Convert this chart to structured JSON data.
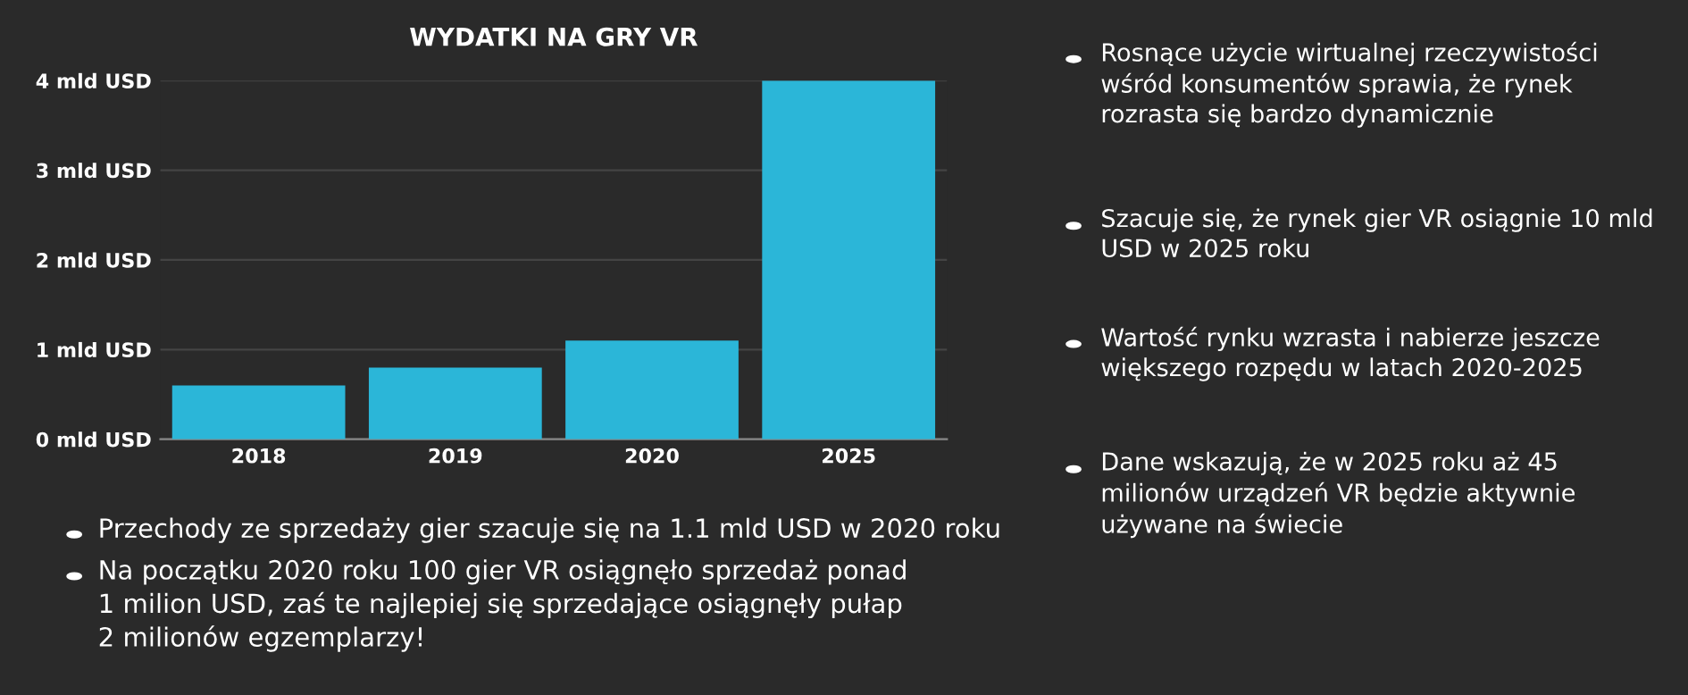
{
  "chart_data": {
    "type": "bar",
    "title": "WYDATKI NA GRY VR",
    "categories": [
      "2018",
      "2019",
      "2020",
      "2025"
    ],
    "values": [
      0.6,
      0.8,
      1.1,
      4.0
    ],
    "color": "#2bb6d8",
    "ylim": [
      0,
      4
    ],
    "yticks": [
      {
        "value": 0,
        "label": "0 mld USD"
      },
      {
        "value": 1,
        "label": "1 mld USD"
      },
      {
        "value": 2,
        "label": "2 mld USD"
      },
      {
        "value": 3,
        "label": "3 mld USD"
      },
      {
        "value": 4,
        "label": "4 mld USD"
      }
    ],
    "grid": "y",
    "annotations": [
      "Rosnące użycie wirtualnej rzeczywistości\nwśród konsumentów sprawia, że rynek\nrozrasta się bardzo dynamicznie",
      "Szacuje się, że rynek gier VR osiągnie 10 mld\nUSD w 2025 roku",
      "Wartość rynku wzrasta i nabierze jeszcze\nwiększego rozpędu w latach 2020-2025",
      "Dane wskazują, że w 2025 roku aż 45\nmilionów urządzeń VR będzie aktywnie\nużywane na świecie",
      "Przechody ze sprzedaży gier szacuje się na 1.1 mld USD w 2020 roku",
      "Na początku 2020 roku 100 gier VR osiągnęło sprzedaż ponad\n1 milion USD, zaś te najlepiej się sprzedające osiągnęły pułap\n2 milionów egzemplarzy!"
    ]
  }
}
